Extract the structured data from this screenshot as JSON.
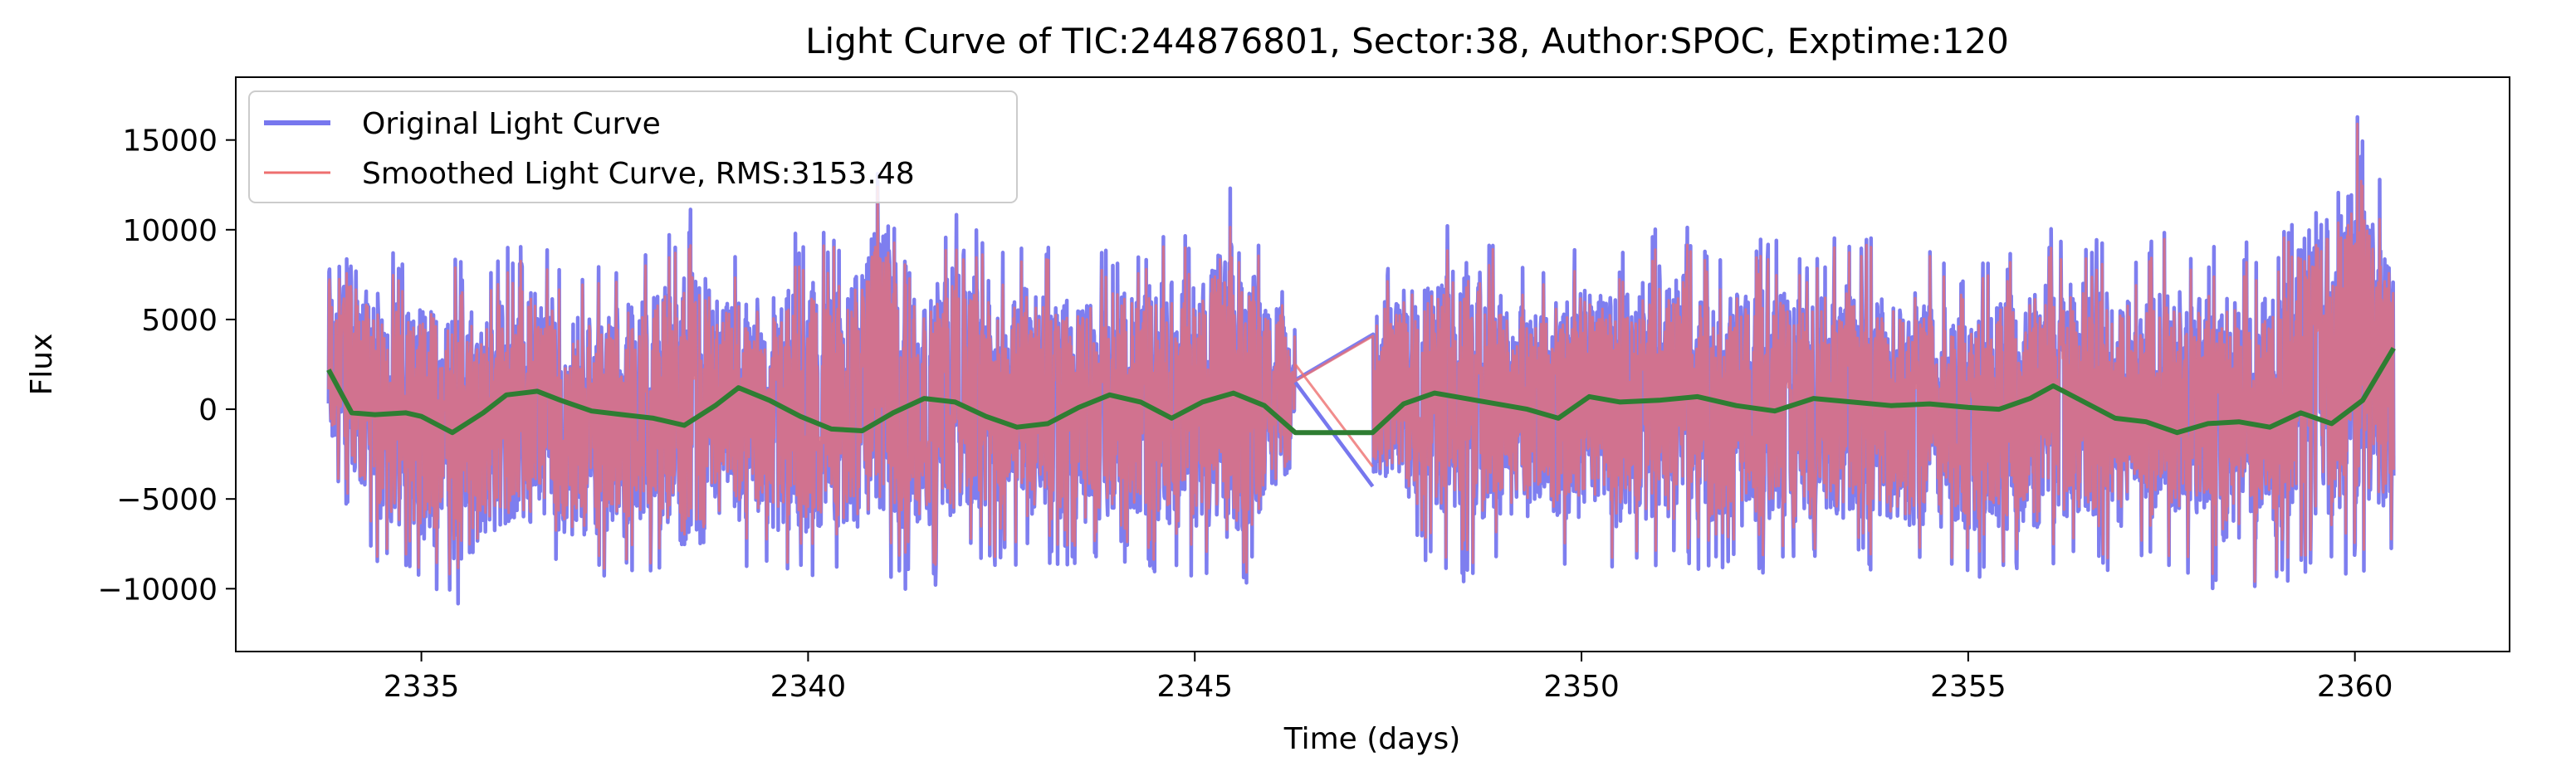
{
  "chart_data": {
    "type": "line",
    "title": "Light Curve of TIC:244876801, Sector:38, Author:SPOC, Exptime:120",
    "xlabel": "Time (days)",
    "ylabel": "Flux",
    "xlim": [
      2332.6,
      2362.0
    ],
    "ylim": [
      -13500,
      18500
    ],
    "xticks": [
      2335,
      2340,
      2345,
      2350,
      2355,
      2360
    ],
    "xtick_labels": [
      "2335",
      "2340",
      "2345",
      "2350",
      "2355",
      "2360"
    ],
    "yticks": [
      -10000,
      -5000,
      0,
      5000,
      10000,
      15000
    ],
    "ytick_labels": [
      "−10000",
      "−5000",
      "0",
      "5000",
      "10000",
      "15000"
    ],
    "grid": false,
    "legend_position": "top-left",
    "gap": [
      2346.3,
      2347.3
    ],
    "series": [
      {
        "name": "Original Light Curve",
        "color": "#7777ee",
        "envelope": {
          "x": [
            2333.8,
            2334.5,
            2335.0,
            2335.5,
            2336.0,
            2336.5,
            2337.0,
            2337.5,
            2338.0,
            2338.5,
            2339.0,
            2339.5,
            2340.0,
            2340.5,
            2341.0,
            2341.5,
            2342.0,
            2342.5,
            2343.0,
            2343.5,
            2344.0,
            2344.5,
            2345.0,
            2345.5,
            2346.3,
            2347.3,
            2348.0,
            2348.5,
            2349.0,
            2349.5,
            2350.0,
            2350.5,
            2351.0,
            2351.5,
            2352.0,
            2352.5,
            2353.0,
            2353.5,
            2354.0,
            2354.5,
            2355.0,
            2355.5,
            2356.0,
            2356.5,
            2357.0,
            2357.5,
            2358.0,
            2358.5,
            2359.0,
            2359.5,
            2360.0,
            2360.5
          ],
          "upper": [
            11800,
            9000,
            8500,
            8500,
            9000,
            9500,
            8000,
            8500,
            9000,
            11500,
            8500,
            9000,
            10500,
            9000,
            15500,
            9000,
            12000,
            9000,
            10000,
            8500,
            9000,
            10000,
            10500,
            13200,
            6000,
            7500,
            10500,
            11800,
            9000,
            8000,
            9500,
            9000,
            11000,
            10000,
            9500,
            9500,
            8500,
            10500,
            9000,
            9500,
            8000,
            9000,
            10500,
            10000,
            9000,
            10000,
            9000,
            9500,
            9500,
            15000,
            16800,
            11000
          ],
          "lower": [
            -4000,
            -9000,
            -10000,
            -12000,
            -9500,
            -9000,
            -10000,
            -10000,
            -9500,
            -11500,
            -9000,
            -9500,
            -10000,
            -9500,
            -10000,
            -10500,
            -8500,
            -9000,
            -8500,
            -9000,
            -8500,
            -9500,
            -9500,
            -11800,
            -4500,
            -5500,
            -8500,
            -10000,
            -8500,
            -8500,
            -9000,
            -9500,
            -9000,
            -9000,
            -9500,
            -9500,
            -9000,
            -9000,
            -9000,
            -9500,
            -9500,
            -9500,
            -10000,
            -8500,
            -9500,
            -9000,
            -10000,
            -11000,
            -10000,
            -10000,
            -9500,
            -8500
          ]
        }
      },
      {
        "name": "Smoothed Light Curve, RMS:3153.48",
        "color": "#ee6f6f"
      },
      {
        "color": "#2e7d32",
        "x": [
          2333.8,
          2334.1,
          2334.4,
          2334.8,
          2335.0,
          2335.4,
          2335.8,
          2336.1,
          2336.5,
          2336.8,
          2337.2,
          2337.6,
          2338.0,
          2338.4,
          2338.8,
          2339.1,
          2339.5,
          2339.9,
          2340.3,
          2340.7,
          2341.1,
          2341.5,
          2341.9,
          2342.3,
          2342.7,
          2343.1,
          2343.5,
          2343.9,
          2344.3,
          2344.7,
          2345.1,
          2345.5,
          2345.9,
          2346.3,
          2347.3,
          2347.7,
          2348.1,
          2348.5,
          2348.9,
          2349.3,
          2349.7,
          2350.1,
          2350.5,
          2351.0,
          2351.5,
          2352.0,
          2352.5,
          2353.0,
          2353.5,
          2354.0,
          2354.5,
          2355.0,
          2355.4,
          2355.8,
          2356.1,
          2356.5,
          2356.9,
          2357.3,
          2357.7,
          2358.1,
          2358.5,
          2358.9,
          2359.3,
          2359.7,
          2360.1,
          2360.5
        ],
        "y": [
          2200,
          -200,
          -300,
          -200,
          -400,
          -1300,
          -200,
          800,
          1000,
          500,
          -100,
          -300,
          -500,
          -900,
          200,
          1200,
          500,
          -400,
          -1100,
          -1200,
          -200,
          600,
          400,
          -400,
          -1000,
          -800,
          100,
          800,
          400,
          -500,
          400,
          900,
          200,
          -1300,
          -1300,
          300,
          900,
          600,
          300,
          0,
          -500,
          700,
          400,
          500,
          700,
          200,
          -100,
          600,
          400,
          200,
          300,
          100,
          0,
          600,
          1300,
          400,
          -500,
          -700,
          -1300,
          -800,
          -700,
          -1000,
          -200,
          -800,
          500,
          3400
        ]
      }
    ]
  }
}
